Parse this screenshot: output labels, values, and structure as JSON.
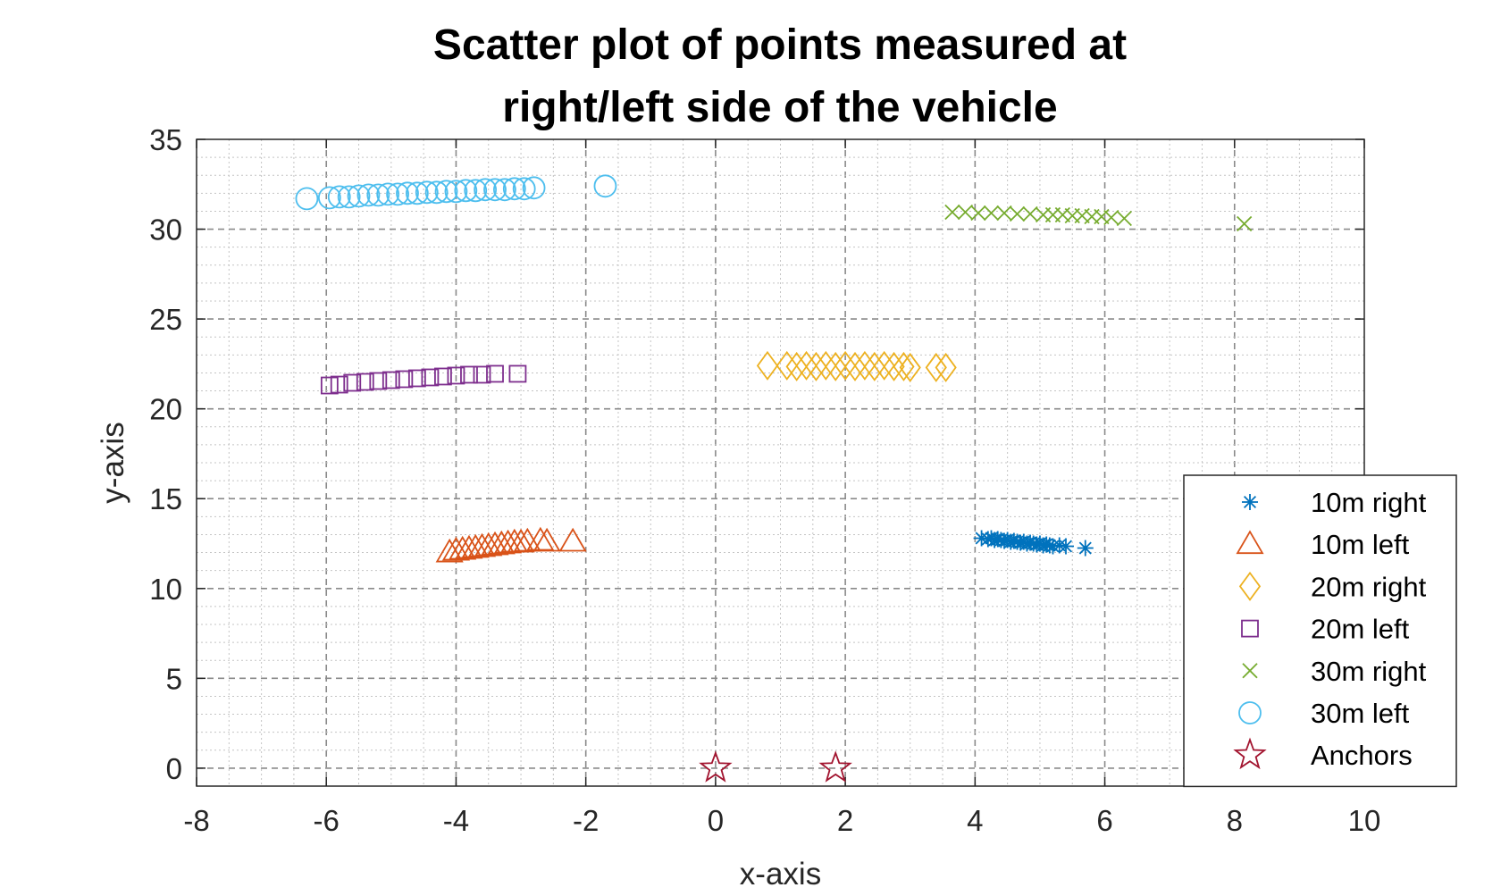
{
  "chart_data": {
    "type": "scatter",
    "title": [
      "Scatter plot of points measured at",
      "right/left side of the vehicle"
    ],
    "xlabel": "x-axis",
    "ylabel": "y-axis",
    "xlim": [
      -8,
      10
    ],
    "ylim": [
      -1,
      35
    ],
    "xticks": [
      -8,
      -6,
      -4,
      -2,
      0,
      2,
      4,
      6,
      8,
      10
    ],
    "yticks": [
      0,
      5,
      10,
      15,
      20,
      25,
      30,
      35
    ],
    "grid": true,
    "minor_grid": true,
    "legend_position": "bottom-right",
    "series": [
      {
        "name": "10m right",
        "marker": "asterisk",
        "color": "#0072BD",
        "points": [
          [
            4.1,
            12.8
          ],
          [
            4.2,
            12.75
          ],
          [
            4.25,
            12.8
          ],
          [
            4.3,
            12.7
          ],
          [
            4.35,
            12.75
          ],
          [
            4.4,
            12.7
          ],
          [
            4.45,
            12.65
          ],
          [
            4.5,
            12.7
          ],
          [
            4.55,
            12.6
          ],
          [
            4.6,
            12.65
          ],
          [
            4.65,
            12.6
          ],
          [
            4.7,
            12.55
          ],
          [
            4.75,
            12.6
          ],
          [
            4.8,
            12.5
          ],
          [
            4.85,
            12.55
          ],
          [
            4.9,
            12.5
          ],
          [
            4.95,
            12.45
          ],
          [
            5.0,
            12.5
          ],
          [
            5.05,
            12.4
          ],
          [
            5.1,
            12.45
          ],
          [
            5.15,
            12.4
          ],
          [
            5.2,
            12.35
          ],
          [
            5.3,
            12.4
          ],
          [
            5.4,
            12.35
          ],
          [
            5.7,
            12.25
          ]
        ]
      },
      {
        "name": "10m left",
        "marker": "triangle",
        "color": "#D95319",
        "points": [
          [
            -4.1,
            12.0
          ],
          [
            -4.0,
            12.1
          ],
          [
            -3.9,
            12.15
          ],
          [
            -3.8,
            12.2
          ],
          [
            -3.7,
            12.25
          ],
          [
            -3.6,
            12.3
          ],
          [
            -3.5,
            12.35
          ],
          [
            -3.4,
            12.4
          ],
          [
            -3.3,
            12.45
          ],
          [
            -3.2,
            12.5
          ],
          [
            -3.1,
            12.55
          ],
          [
            -3.0,
            12.55
          ],
          [
            -2.9,
            12.6
          ],
          [
            -2.7,
            12.65
          ],
          [
            -2.6,
            12.6
          ],
          [
            -2.2,
            12.6
          ]
        ]
      },
      {
        "name": "20m right",
        "marker": "diamond",
        "color": "#EDB120",
        "points": [
          [
            0.8,
            22.4
          ],
          [
            1.1,
            22.4
          ],
          [
            1.25,
            22.35
          ],
          [
            1.4,
            22.4
          ],
          [
            1.55,
            22.35
          ],
          [
            1.7,
            22.4
          ],
          [
            1.85,
            22.35
          ],
          [
            2.0,
            22.4
          ],
          [
            2.15,
            22.35
          ],
          [
            2.3,
            22.4
          ],
          [
            2.45,
            22.35
          ],
          [
            2.6,
            22.4
          ],
          [
            2.75,
            22.35
          ],
          [
            2.9,
            22.35
          ],
          [
            3.0,
            22.3
          ],
          [
            3.4,
            22.3
          ],
          [
            3.55,
            22.3
          ]
        ]
      },
      {
        "name": "20m left",
        "marker": "square",
        "color": "#7E2F8E",
        "points": [
          [
            -5.95,
            21.3
          ],
          [
            -5.8,
            21.35
          ],
          [
            -5.6,
            21.45
          ],
          [
            -5.4,
            21.5
          ],
          [
            -5.2,
            21.55
          ],
          [
            -5.0,
            21.6
          ],
          [
            -4.8,
            21.65
          ],
          [
            -4.6,
            21.7
          ],
          [
            -4.4,
            21.75
          ],
          [
            -4.2,
            21.8
          ],
          [
            -4.0,
            21.85
          ],
          [
            -3.8,
            21.9
          ],
          [
            -3.6,
            21.9
          ],
          [
            -3.4,
            21.95
          ],
          [
            -3.05,
            21.95
          ]
        ]
      },
      {
        "name": "30m right",
        "marker": "x",
        "color": "#77AC30",
        "points": [
          [
            3.65,
            30.95
          ],
          [
            3.85,
            30.95
          ],
          [
            4.05,
            30.9
          ],
          [
            4.25,
            30.9
          ],
          [
            4.45,
            30.9
          ],
          [
            4.65,
            30.85
          ],
          [
            4.85,
            30.85
          ],
          [
            5.05,
            30.8
          ],
          [
            5.2,
            30.8
          ],
          [
            5.35,
            30.8
          ],
          [
            5.5,
            30.75
          ],
          [
            5.65,
            30.75
          ],
          [
            5.8,
            30.7
          ],
          [
            5.95,
            30.7
          ],
          [
            6.1,
            30.65
          ],
          [
            6.3,
            30.6
          ],
          [
            8.15,
            30.3
          ]
        ]
      },
      {
        "name": "30m left",
        "marker": "circle",
        "color": "#4DBEEE",
        "points": [
          [
            -6.3,
            31.7
          ],
          [
            -5.95,
            31.75
          ],
          [
            -5.8,
            31.8
          ],
          [
            -5.65,
            31.8
          ],
          [
            -5.5,
            31.85
          ],
          [
            -5.35,
            31.9
          ],
          [
            -5.2,
            31.9
          ],
          [
            -5.05,
            31.95
          ],
          [
            -4.9,
            31.95
          ],
          [
            -4.75,
            32.0
          ],
          [
            -4.6,
            32.0
          ],
          [
            -4.45,
            32.05
          ],
          [
            -4.3,
            32.05
          ],
          [
            -4.15,
            32.1
          ],
          [
            -4.0,
            32.1
          ],
          [
            -3.85,
            32.15
          ],
          [
            -3.7,
            32.15
          ],
          [
            -3.55,
            32.2
          ],
          [
            -3.4,
            32.2
          ],
          [
            -3.25,
            32.2
          ],
          [
            -3.1,
            32.25
          ],
          [
            -2.95,
            32.25
          ],
          [
            -2.8,
            32.3
          ],
          [
            -1.7,
            32.4
          ]
        ]
      },
      {
        "name": "Anchors",
        "marker": "star",
        "color": "#A2142F",
        "points": [
          [
            0,
            0
          ],
          [
            1.85,
            0
          ]
        ]
      }
    ]
  }
}
